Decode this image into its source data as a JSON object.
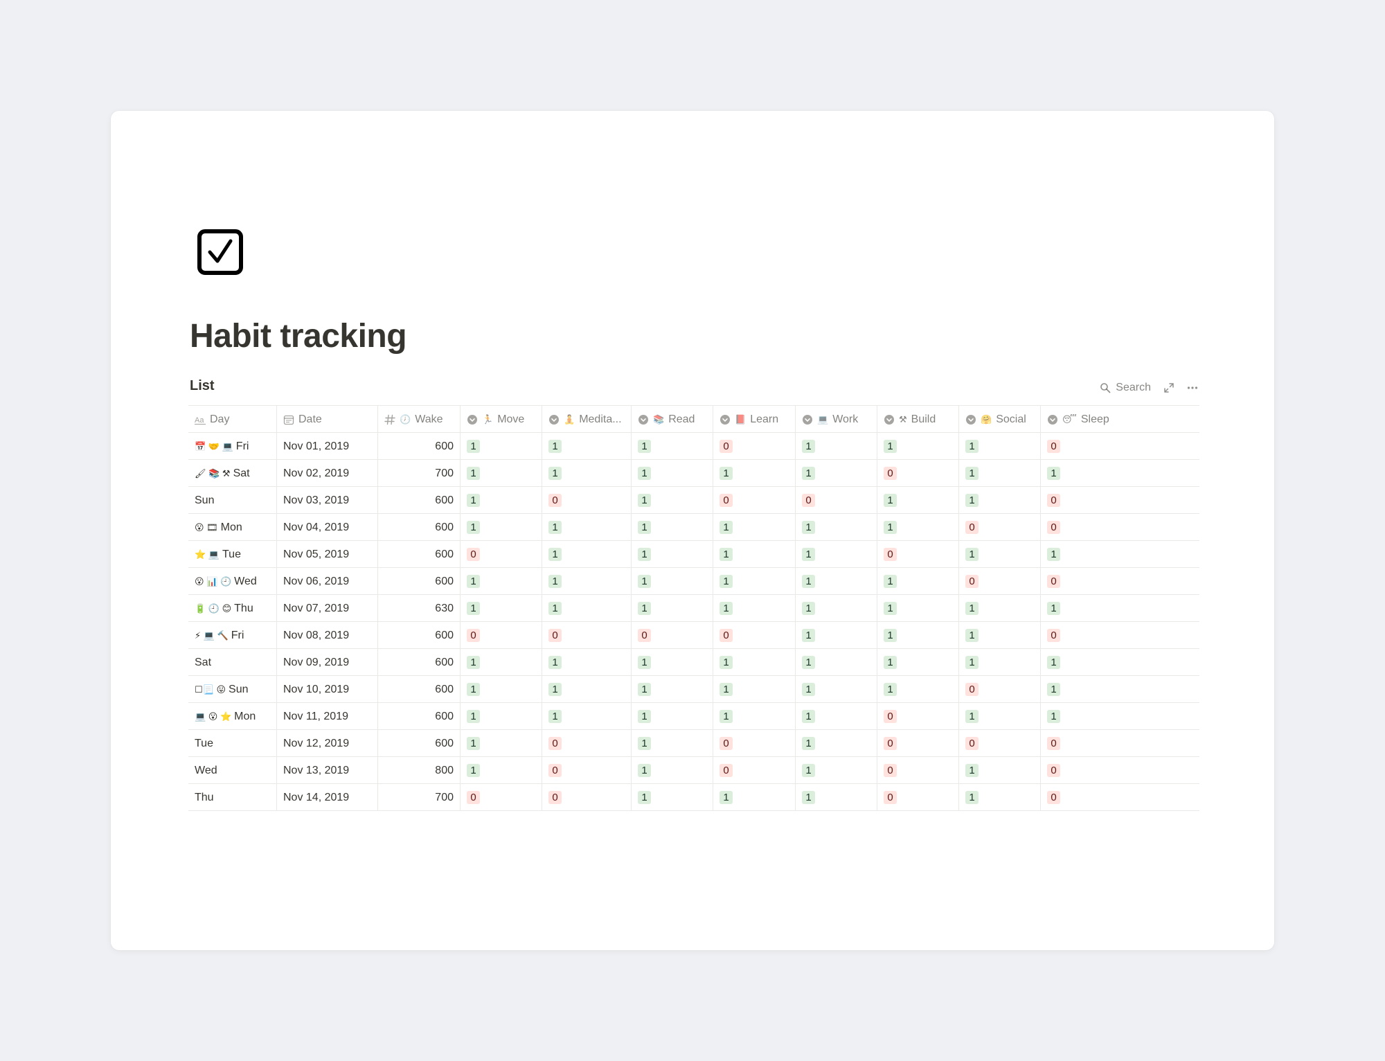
{
  "page": {
    "title": "Habit tracking",
    "icon": "checkbox-icon"
  },
  "view": {
    "title": "List",
    "search_label": "Search",
    "tools": [
      "search-icon",
      "expand-icon",
      "more-icon"
    ]
  },
  "colors": {
    "tag_yes_bg": "#dbeddb",
    "tag_no_bg": "#ffe2dd",
    "page_bg": "#eff0f3"
  },
  "columns": [
    {
      "label": "Day",
      "icon": "text-property-icon"
    },
    {
      "label": "Date",
      "icon": "calendar-property-icon"
    },
    {
      "label": "Wake",
      "icon": "number-property-icon",
      "emoji": "🕖"
    },
    {
      "label": "Move",
      "icon": "select-property-icon",
      "emoji": "🏃"
    },
    {
      "label": "Medita...",
      "icon": "select-property-icon",
      "emoji": "🧘"
    },
    {
      "label": "Read",
      "icon": "select-property-icon",
      "emoji": "📚"
    },
    {
      "label": "Learn",
      "icon": "select-property-icon",
      "emoji": "📕"
    },
    {
      "label": "Work",
      "icon": "select-property-icon",
      "emoji": "💻"
    },
    {
      "label": "Build",
      "icon": "select-property-icon",
      "emoji": "⚒"
    },
    {
      "label": "Social",
      "icon": "select-property-icon",
      "emoji": "🤗"
    },
    {
      "label": "Sleep",
      "icon": "select-property-icon",
      "emoji": "😴"
    }
  ],
  "rows": [
    {
      "emojis": "📅 🤝 💻",
      "day": "Fri",
      "date": "Nov 01, 2019",
      "wake": "600",
      "habits": [
        "1",
        "1",
        "1",
        "0",
        "1",
        "1",
        "1",
        "0"
      ]
    },
    {
      "emojis": "🖌 📚 ⚒",
      "day": "Sat",
      "date": "Nov 02, 2019",
      "wake": "700",
      "habits": [
        "1",
        "1",
        "1",
        "1",
        "1",
        "0",
        "1",
        "1"
      ]
    },
    {
      "emojis": "",
      "day": "Sun",
      "date": "Nov 03, 2019",
      "wake": "600",
      "habits": [
        "1",
        "0",
        "1",
        "0",
        "0",
        "1",
        "1",
        "0"
      ]
    },
    {
      "emojis": "😮 🎞",
      "day": "Mon",
      "date": "Nov 04, 2019",
      "wake": "600",
      "habits": [
        "1",
        "1",
        "1",
        "1",
        "1",
        "1",
        "0",
        "0"
      ]
    },
    {
      "emojis": "⭐ 💻",
      "day": "Tue",
      "date": "Nov 05, 2019",
      "wake": "600",
      "habits": [
        "0",
        "1",
        "1",
        "1",
        "1",
        "0",
        "1",
        "1"
      ]
    },
    {
      "emojis": "😮 📊 🕘",
      "day": "Wed",
      "date": "Nov 06, 2019",
      "wake": "600",
      "habits": [
        "1",
        "1",
        "1",
        "1",
        "1",
        "1",
        "0",
        "0"
      ]
    },
    {
      "emojis": "🔋 🕘 😊",
      "day": "Thu",
      "date": "Nov 07, 2019",
      "wake": "630",
      "habits": [
        "1",
        "1",
        "1",
        "1",
        "1",
        "1",
        "1",
        "1"
      ]
    },
    {
      "emojis": "⚡ 💻 🔨",
      "day": "Fri",
      "date": "Nov 08, 2019",
      "wake": "600",
      "habits": [
        "0",
        "0",
        "0",
        "0",
        "1",
        "1",
        "1",
        "0"
      ]
    },
    {
      "emojis": "",
      "day": "Sat",
      "date": "Nov 09, 2019",
      "wake": "600",
      "habits": [
        "1",
        "1",
        "1",
        "1",
        "1",
        "1",
        "1",
        "1"
      ]
    },
    {
      "emojis": "☐📃 😛",
      "day": "Sun",
      "date": "Nov 10, 2019",
      "wake": "600",
      "habits": [
        "1",
        "1",
        "1",
        "1",
        "1",
        "1",
        "0",
        "1"
      ]
    },
    {
      "emojis": "💻 😮 ⭐",
      "day": "Mon",
      "date": "Nov 11, 2019",
      "wake": "600",
      "habits": [
        "1",
        "1",
        "1",
        "1",
        "1",
        "0",
        "1",
        "1"
      ]
    },
    {
      "emojis": "",
      "day": "Tue",
      "date": "Nov 12, 2019",
      "wake": "600",
      "habits": [
        "1",
        "0",
        "1",
        "0",
        "1",
        "0",
        "0",
        "0"
      ]
    },
    {
      "emojis": "",
      "day": "Wed",
      "date": "Nov 13, 2019",
      "wake": "800",
      "habits": [
        "1",
        "0",
        "1",
        "0",
        "1",
        "0",
        "1",
        "0"
      ]
    },
    {
      "emojis": "",
      "day": "Thu",
      "date": "Nov 14, 2019",
      "wake": "700",
      "habits": [
        "0",
        "0",
        "1",
        "1",
        "1",
        "0",
        "1",
        "0"
      ]
    }
  ]
}
